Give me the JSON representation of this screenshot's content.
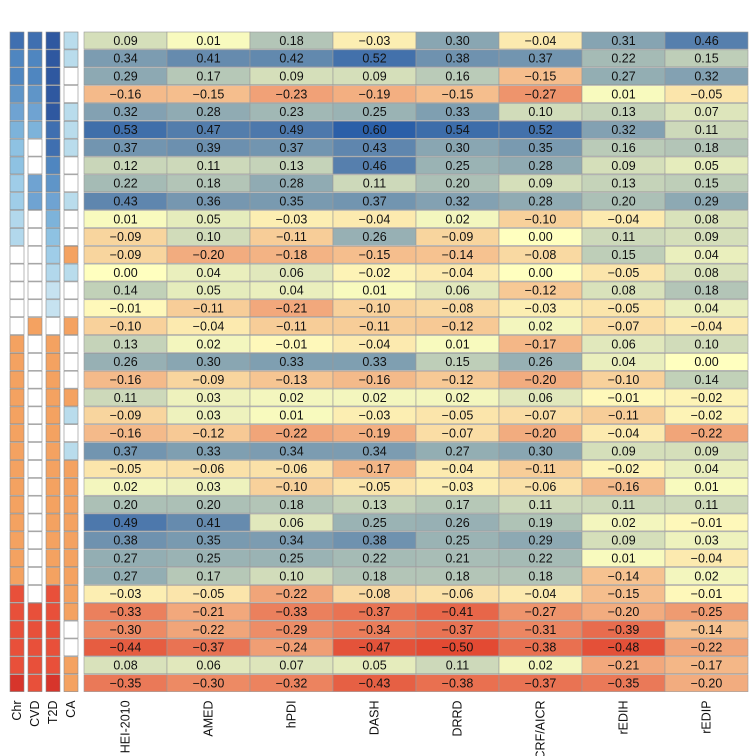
{
  "chart_data": {
    "type": "heatmap",
    "title": "",
    "xlabel": "",
    "ylabel": "",
    "x_categories": [
      "HEI-2010",
      "AMED",
      "hPDI",
      "DASH",
      "DRRD",
      "WCRF/AICR",
      "rEDIH",
      "rEDIP"
    ],
    "side_columns": [
      "Chr",
      "CVD",
      "T2D",
      "CA"
    ],
    "values": [
      [
        0.09,
        0.01,
        0.18,
        -0.03,
        0.3,
        -0.04,
        0.31,
        0.46
      ],
      [
        0.34,
        0.41,
        0.42,
        0.52,
        0.38,
        0.37,
        0.22,
        0.15
      ],
      [
        0.29,
        0.17,
        0.09,
        0.09,
        0.16,
        -0.15,
        0.27,
        0.32
      ],
      [
        -0.16,
        -0.15,
        -0.23,
        -0.19,
        -0.15,
        -0.27,
        0.01,
        -0.05
      ],
      [
        0.32,
        0.28,
        0.23,
        0.25,
        0.33,
        0.1,
        0.13,
        0.07
      ],
      [
        0.53,
        0.47,
        0.49,
        0.6,
        0.54,
        0.52,
        0.32,
        0.11
      ],
      [
        0.37,
        0.39,
        0.37,
        0.43,
        0.3,
        0.35,
        0.16,
        0.18
      ],
      [
        0.12,
        0.11,
        0.13,
        0.46,
        0.25,
        0.28,
        0.09,
        0.05
      ],
      [
        0.22,
        0.18,
        0.28,
        0.11,
        0.2,
        0.09,
        0.13,
        0.15
      ],
      [
        0.43,
        0.36,
        0.35,
        0.37,
        0.32,
        0.28,
        0.2,
        0.29
      ],
      [
        0.01,
        0.05,
        -0.03,
        -0.04,
        0.02,
        -0.1,
        -0.04,
        0.08
      ],
      [
        -0.09,
        0.1,
        -0.11,
        0.26,
        -0.09,
        0.0,
        0.11,
        0.09
      ],
      [
        -0.09,
        -0.2,
        -0.18,
        -0.15,
        -0.14,
        -0.08,
        0.15,
        0.04
      ],
      [
        0.0,
        0.04,
        0.06,
        -0.02,
        -0.04,
        0.0,
        -0.05,
        0.08
      ],
      [
        0.14,
        0.05,
        0.04,
        0.01,
        0.06,
        -0.12,
        0.08,
        0.18
      ],
      [
        -0.01,
        -0.11,
        -0.21,
        -0.1,
        -0.08,
        -0.03,
        -0.05,
        0.04
      ],
      [
        -0.1,
        -0.04,
        -0.11,
        -0.11,
        -0.12,
        0.02,
        -0.07,
        -0.04
      ],
      [
        0.13,
        0.02,
        -0.01,
        -0.04,
        0.01,
        -0.17,
        0.06,
        0.1
      ],
      [
        0.26,
        0.3,
        0.33,
        0.33,
        0.15,
        0.26,
        0.04,
        0.0
      ],
      [
        -0.16,
        -0.09,
        -0.13,
        -0.16,
        -0.12,
        -0.2,
        -0.1,
        0.14
      ],
      [
        0.11,
        0.03,
        0.02,
        0.02,
        0.02,
        0.06,
        -0.01,
        -0.02
      ],
      [
        -0.09,
        0.03,
        0.01,
        -0.03,
        -0.05,
        -0.07,
        -0.11,
        -0.02
      ],
      [
        -0.16,
        -0.12,
        -0.22,
        -0.19,
        -0.07,
        -0.2,
        -0.04,
        -0.22
      ],
      [
        0.37,
        0.33,
        0.34,
        0.34,
        0.27,
        0.3,
        0.09,
        0.09
      ],
      [
        -0.05,
        -0.06,
        -0.06,
        -0.17,
        -0.04,
        -0.11,
        -0.02,
        0.04
      ],
      [
        0.02,
        0.03,
        -0.1,
        -0.05,
        -0.03,
        -0.06,
        -0.16,
        0.01
      ],
      [
        0.2,
        0.2,
        0.18,
        0.13,
        0.17,
        0.11,
        0.11,
        0.11
      ],
      [
        0.49,
        0.41,
        0.06,
        0.25,
        0.26,
        0.19,
        0.02,
        -0.01
      ],
      [
        0.38,
        0.35,
        0.34,
        0.38,
        0.25,
        0.29,
        0.09,
        0.03
      ],
      [
        0.27,
        0.25,
        0.25,
        0.22,
        0.21,
        0.22,
        0.01,
        -0.04
      ],
      [
        0.27,
        0.17,
        0.1,
        0.18,
        0.18,
        0.18,
        -0.14,
        0.02
      ],
      [
        -0.03,
        -0.05,
        -0.22,
        -0.08,
        -0.06,
        -0.04,
        -0.15,
        -0.01
      ],
      [
        -0.33,
        -0.21,
        -0.33,
        -0.37,
        -0.41,
        -0.27,
        -0.2,
        -0.25
      ],
      [
        -0.3,
        -0.22,
        -0.29,
        -0.34,
        -0.37,
        -0.31,
        -0.39,
        -0.14
      ],
      [
        -0.44,
        -0.37,
        -0.24,
        -0.47,
        -0.5,
        -0.38,
        -0.48,
        -0.22
      ],
      [
        0.08,
        0.06,
        0.07,
        0.05,
        0.11,
        0.02,
        -0.21,
        -0.17
      ],
      [
        -0.35,
        -0.3,
        -0.32,
        -0.43,
        -0.38,
        -0.37,
        -0.35,
        -0.2
      ]
    ],
    "side_colors": [
      [
        "#3f6fb0",
        "#3f6fb0",
        "#2f58a0",
        "#b9dcec"
      ],
      [
        "#4f86c0",
        "#4f86c0",
        "#2f58a0",
        "#b9dcec"
      ],
      [
        "#4f86c0",
        "#4f86c0",
        "#2f58a0",
        "#ffffff"
      ],
      [
        "#5f95c8",
        "#5f95c8",
        "#2f58a0",
        "#ffffff"
      ],
      [
        "#6fa3d2",
        "#6fa3d2",
        "#2f58a0",
        "#b9dcec"
      ],
      [
        "#7db3da",
        "#7db3da",
        "#3f6fb0",
        "#b9dcec"
      ],
      [
        "#8ec2e2",
        "#ffffff",
        "#3f6fb0",
        "#b9dcec"
      ],
      [
        "#8ec2e2",
        "#ffffff",
        "#4f86c0",
        "#ffffff"
      ],
      [
        "#9fcde8",
        "#6fa3d2",
        "#5f95c8",
        "#ffffff"
      ],
      [
        "#9fcde8",
        "#6fa3d2",
        "#6fa3d2",
        "#b9dcec"
      ],
      [
        "#b2d8ec",
        "#ffffff",
        "#7db3da",
        "#ffffff"
      ],
      [
        "#b2d8ec",
        "#ffffff",
        "#8ec2e2",
        "#ffffff"
      ],
      [
        "#ffffff",
        "#ffffff",
        "#9fcde8",
        "#f4a261"
      ],
      [
        "#ffffff",
        "#ffffff",
        "#b2d8ec",
        "#b9dcec"
      ],
      [
        "#ffffff",
        "#ffffff",
        "#c6e2f0",
        "#ffffff"
      ],
      [
        "#ffffff",
        "#ffffff",
        "#c6e2f0",
        "#ffffff"
      ],
      [
        "#ffffff",
        "#f4a261",
        "#ffffff",
        "#f4a261"
      ],
      [
        "#f4a261",
        "#ffffff",
        "#f4a261",
        "#ffffff"
      ],
      [
        "#f4a261",
        "#ffffff",
        "#f4a261",
        "#ffffff"
      ],
      [
        "#f4a261",
        "#ffffff",
        "#f4a261",
        "#ffffff"
      ],
      [
        "#f4a261",
        "#ffffff",
        "#f4a261",
        "#f4a261"
      ],
      [
        "#f4a261",
        "#ffffff",
        "#f4a261",
        "#b9dcec"
      ],
      [
        "#f4a261",
        "#ffffff",
        "#f4a261",
        "#ffffff"
      ],
      [
        "#f4a261",
        "#ffffff",
        "#f4a261",
        "#b9dcec"
      ],
      [
        "#f4a261",
        "#ffffff",
        "#f4a261",
        "#f4a261"
      ],
      [
        "#f4a261",
        "#ffffff",
        "#f4a261",
        "#f4a261"
      ],
      [
        "#f4a261",
        "#ffffff",
        "#f4a261",
        "#f4a261"
      ],
      [
        "#f4a261",
        "#ffffff",
        "#f4a261",
        "#f4a261"
      ],
      [
        "#f4a261",
        "#ffffff",
        "#f4a261",
        "#f4a261"
      ],
      [
        "#f4a261",
        "#ffffff",
        "#f4a261",
        "#f4a261"
      ],
      [
        "#f4a261",
        "#ffffff",
        "#f4a261",
        "#f4a261"
      ],
      [
        "#e8503a",
        "#ffffff",
        "#e8503a",
        "#f4a261"
      ],
      [
        "#e8503a",
        "#e8503a",
        "#e8503a",
        "#f4a261"
      ],
      [
        "#e8503a",
        "#e8503a",
        "#e8503a",
        "#ffffff"
      ],
      [
        "#e8503a",
        "#e8503a",
        "#e8503a",
        "#ffffff"
      ],
      [
        "#e8503a",
        "#e8503a",
        "#e8503a",
        "#f4a261"
      ],
      [
        "#d7352b",
        "#e8503a",
        "#d7352b",
        "#f4a261"
      ]
    ],
    "color_scale": {
      "min": -0.5,
      "mid": 0.0,
      "max": 0.6,
      "low_color": "#e34a33",
      "mid_color": "#ffffbf",
      "high_color": "#2b5fa8"
    },
    "legend": "none",
    "grid": true
  }
}
